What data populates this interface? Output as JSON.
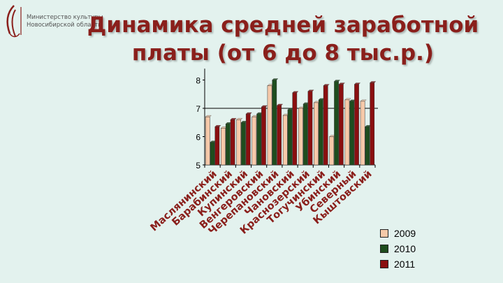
{
  "logo": {
    "line1": "Министерство культуры",
    "line2": "Новосибирской области"
  },
  "title": {
    "line1": "Динамика средней заработной",
    "line2": "платы (от 6 до 8 тыс.р.)"
  },
  "colors": {
    "s2009": "#f6c9a9",
    "s2010": "#1e4d1e",
    "s2011": "#8a0f10",
    "title": "#8a1f1b",
    "background": "#e3f2ee"
  },
  "chart_data": {
    "type": "bar",
    "ylim": [
      5,
      8.4
    ],
    "yticks": [
      "5",
      "6",
      "7",
      "8"
    ],
    "reference_line": 7,
    "legend_position": "bottom-right",
    "categories": [
      "Маслянинский",
      "Барабинский",
      "Купинский",
      "Венгеровский",
      "Черепановский",
      "Чановский",
      "Краснозерский",
      "Тогучинский",
      "Убинский",
      "Северный",
      "Кыштовский"
    ],
    "series": [
      {
        "name": "2009",
        "values": [
          6.7,
          6.3,
          6.6,
          6.7,
          7.8,
          6.75,
          7.0,
          7.2,
          6.0,
          7.3,
          7.25
        ]
      },
      {
        "name": "2010",
        "values": [
          5.8,
          6.45,
          6.5,
          6.8,
          8.0,
          6.95,
          7.15,
          7.3,
          7.95,
          7.25,
          6.35
        ]
      },
      {
        "name": "2011",
        "values": [
          6.35,
          6.6,
          6.8,
          7.05,
          7.1,
          7.55,
          7.6,
          7.8,
          7.85,
          7.85,
          7.9
        ]
      }
    ]
  }
}
